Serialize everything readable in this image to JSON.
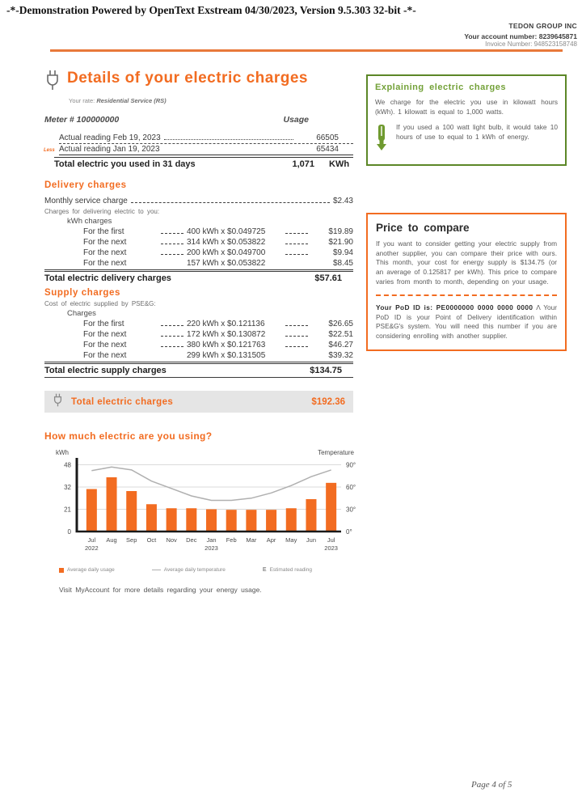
{
  "page": {
    "demo_banner": "-*-Demonstration Powered by OpenText Exstream 04/30/2023, Version 9.5.303 32-bit -*-",
    "company": "TEDON GROUP INC",
    "account_line": "Your account number: 8239645871",
    "invoice_line": "Invoice Number: 948523158748",
    "footer_page": "Page 4 of 5"
  },
  "details": {
    "title": "Details of your electric charges",
    "rate_label": "Your rate:",
    "rate_value": "Residential Service (RS)",
    "meter_label": "Meter # 100000000",
    "usage_header": "Usage",
    "reading1_label": "Actual reading Feb 19, 2023",
    "reading1_value": "66505",
    "less_label": "Less",
    "reading2_label": "Actual reading Jan 19, 2023",
    "reading2_value": "65434",
    "total_used_label": "Total electric you used in 31 days",
    "total_used_value": "1,071",
    "total_used_unit": "KWh"
  },
  "delivery": {
    "title": "Delivery charges",
    "monthly_label": "Monthly service charge",
    "monthly_value": "$2.43",
    "subtitle": "Charges for delivering electric to you:",
    "group_label": "kWh charges",
    "rows": [
      {
        "label": "For the first",
        "calc": "400 kWh x $0.049725",
        "amount": "$19.89"
      },
      {
        "label": "For the next",
        "calc": "314 kWh x $0.053822",
        "amount": "$21.90"
      },
      {
        "label": "For the next",
        "calc": "200 kWh x $0.049700",
        "amount": "$9.94"
      },
      {
        "label": "For the next",
        "calc": "157 kWh x $0.053822",
        "amount": "$8.45"
      }
    ],
    "total_label": "Total electric delivery charges",
    "total_value": "$57.61"
  },
  "supply": {
    "title": "Supply charges",
    "subtitle": "Cost of electric supplied by PSE&G:",
    "group_label": "Charges",
    "rows": [
      {
        "label": "For the first",
        "calc": "220 kWh x $0.121136",
        "amount": "$26.65"
      },
      {
        "label": "For the next",
        "calc": "172 kWh x $0.130872",
        "amount": "$22.51"
      },
      {
        "label": "For the next",
        "calc": "380 kWh x $0.121763",
        "amount": "$46.27"
      },
      {
        "label": "For the next",
        "calc": "299 kWh x $0.131505",
        "amount": "$39.32"
      }
    ],
    "total_label": "Total electric supply charges",
    "total_value": "$134.75"
  },
  "total_banner": {
    "label": "Total electric charges",
    "value": "$192.36"
  },
  "explain_box": {
    "title": "Explaining electric charges",
    "body": "We charge for the electric you use in kilowatt hours (kWh). 1 kilowatt is equal to 1,000 watts.",
    "bulb_note": "If you used a 100 watt light bulb, it would take 10 hours of use to equal to 1 kWh of energy."
  },
  "price_box": {
    "title": "Price to compare",
    "body": "If you want to consider getting your electric supply from another supplier, you can compare their price with ours. This month, your cost for energy supply is $134.75 (or an average of 0.125817 per kWh). This price to compare varies from month to month, depending on your usage.",
    "pod_bold": "Your PoD ID is: PE0000000 0000 0000 0000",
    "pod_suffix": "Λ",
    "pod_rest": "Your PoD ID is your Point of Delivery identification within PSE&G's system. You will need this number if you are considering enrolling with another supplier."
  },
  "usage_section": {
    "title": "How much electric are you using?",
    "footnote": "Visit MyAccount for more details regarding your energy usage."
  },
  "chart_data": {
    "type": "bar",
    "title": "How much electric are you using?",
    "left_axis_label": "kWh",
    "right_axis_label": "Temperature",
    "left_ticks": [
      0,
      21,
      32,
      48
    ],
    "right_ticks": [
      "0°",
      "30°",
      "60°",
      "90°"
    ],
    "right_tick_values": [
      0,
      30,
      60,
      90
    ],
    "categories": [
      "Jul",
      "Aug",
      "Sep",
      "Oct",
      "Nov",
      "Dec",
      "Jan",
      "Feb",
      "Mar",
      "Apr",
      "May",
      "Jun",
      "Jul"
    ],
    "year_labels": {
      "0": "2022",
      "6": "2023",
      "12": "2023"
    },
    "series": [
      {
        "name": "Average daily usage",
        "kind": "bar",
        "color": "#f26c21",
        "values": [
          31,
          39,
          30,
          23.5,
          21.5,
          21.5,
          21,
          20.5,
          20.5,
          20.5,
          21.5,
          26,
          35
        ]
      },
      {
        "name": "Average daily temperature",
        "kind": "line",
        "color": "#b0b0b0",
        "values": [
          82,
          87,
          83,
          68,
          58,
          48,
          42,
          42,
          45,
          52,
          62,
          74,
          83
        ]
      }
    ],
    "legend": [
      "Average daily usage",
      "Average daily temperature",
      "Estimated reading"
    ],
    "grid": true,
    "legend_position": "bottom"
  }
}
